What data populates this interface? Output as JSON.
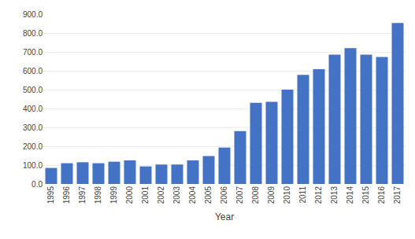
{
  "chart_data": {
    "type": "bar",
    "xlabel": "Year",
    "categories": [
      "1995",
      "1996",
      "1997",
      "1998",
      "1999",
      "2000",
      "2001",
      "2002",
      "2003",
      "2004",
      "2005",
      "2006",
      "2007",
      "2008",
      "2009",
      "2010",
      "2011",
      "2012",
      "2013",
      "2014",
      "2015",
      "2016",
      "2017"
    ],
    "values": [
      85,
      110,
      115,
      110,
      118,
      125,
      93,
      103,
      103,
      125,
      148,
      193,
      280,
      430,
      435,
      500,
      578,
      608,
      685,
      720,
      685,
      673,
      853
    ],
    "color": "#4472C4",
    "ylim": [
      0.0,
      900.0
    ],
    "yticks": [
      {
        "value": 0.0,
        "label": "0.0"
      },
      {
        "value": 100.0,
        "label": "100.0"
      },
      {
        "value": 200.0,
        "label": "200.0"
      },
      {
        "value": 300.0,
        "label": "300.0"
      },
      {
        "value": 400.0,
        "label": "400.0"
      },
      {
        "value": 500.0,
        "label": "500.0"
      },
      {
        "value": 600.0,
        "label": "600.0"
      },
      {
        "value": 700.0,
        "label": "700.0"
      },
      {
        "value": 800.0,
        "label": "800.0"
      },
      {
        "value": 900.0,
        "label": "900.0"
      }
    ],
    "grid": true
  }
}
